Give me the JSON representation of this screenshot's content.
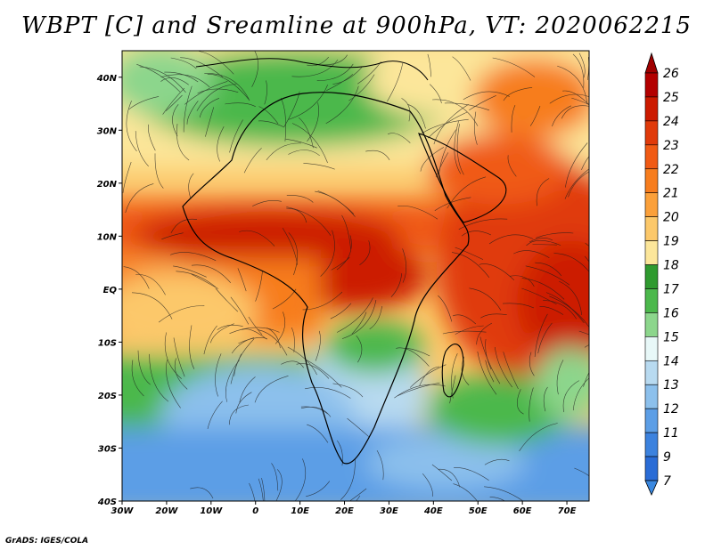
{
  "title": "WBPT [C] and Sreamline at 900hPa, VT: 2020062215",
  "credit": "GrADS: IGES/COLA",
  "map": {
    "lat_ticks": [
      "40N",
      "30N",
      "20N",
      "10N",
      "EQ",
      "10S",
      "20S",
      "30S",
      "40S"
    ],
    "lon_ticks": [
      "30W",
      "20W",
      "10W",
      "0",
      "10E",
      "20E",
      "30E",
      "40E",
      "50E",
      "60E",
      "70E"
    ],
    "lat_range": [
      -40,
      45
    ],
    "lon_range": [
      -30,
      75
    ]
  },
  "colorbar": {
    "labels": [
      "26",
      "25",
      "24",
      "23",
      "22",
      "21",
      "20",
      "19",
      "18",
      "17",
      "16",
      "15",
      "14",
      "13",
      "12",
      "11",
      "9",
      "7"
    ],
    "colors": [
      "#b30000",
      "#cc1a00",
      "#e03a0a",
      "#f05a14",
      "#f77d1e",
      "#fba03a",
      "#fcc86a",
      "#fce69a",
      "#2f9a2f",
      "#4cb84c",
      "#8cd68c",
      "#e8f8f8",
      "#b8daf0",
      "#8cc0ec",
      "#5c9ee6",
      "#3c82de",
      "#2a6cd6"
    ],
    "top_arrow_color": "#a00000",
    "bottom_arrow_color": "#3a88e0"
  }
}
